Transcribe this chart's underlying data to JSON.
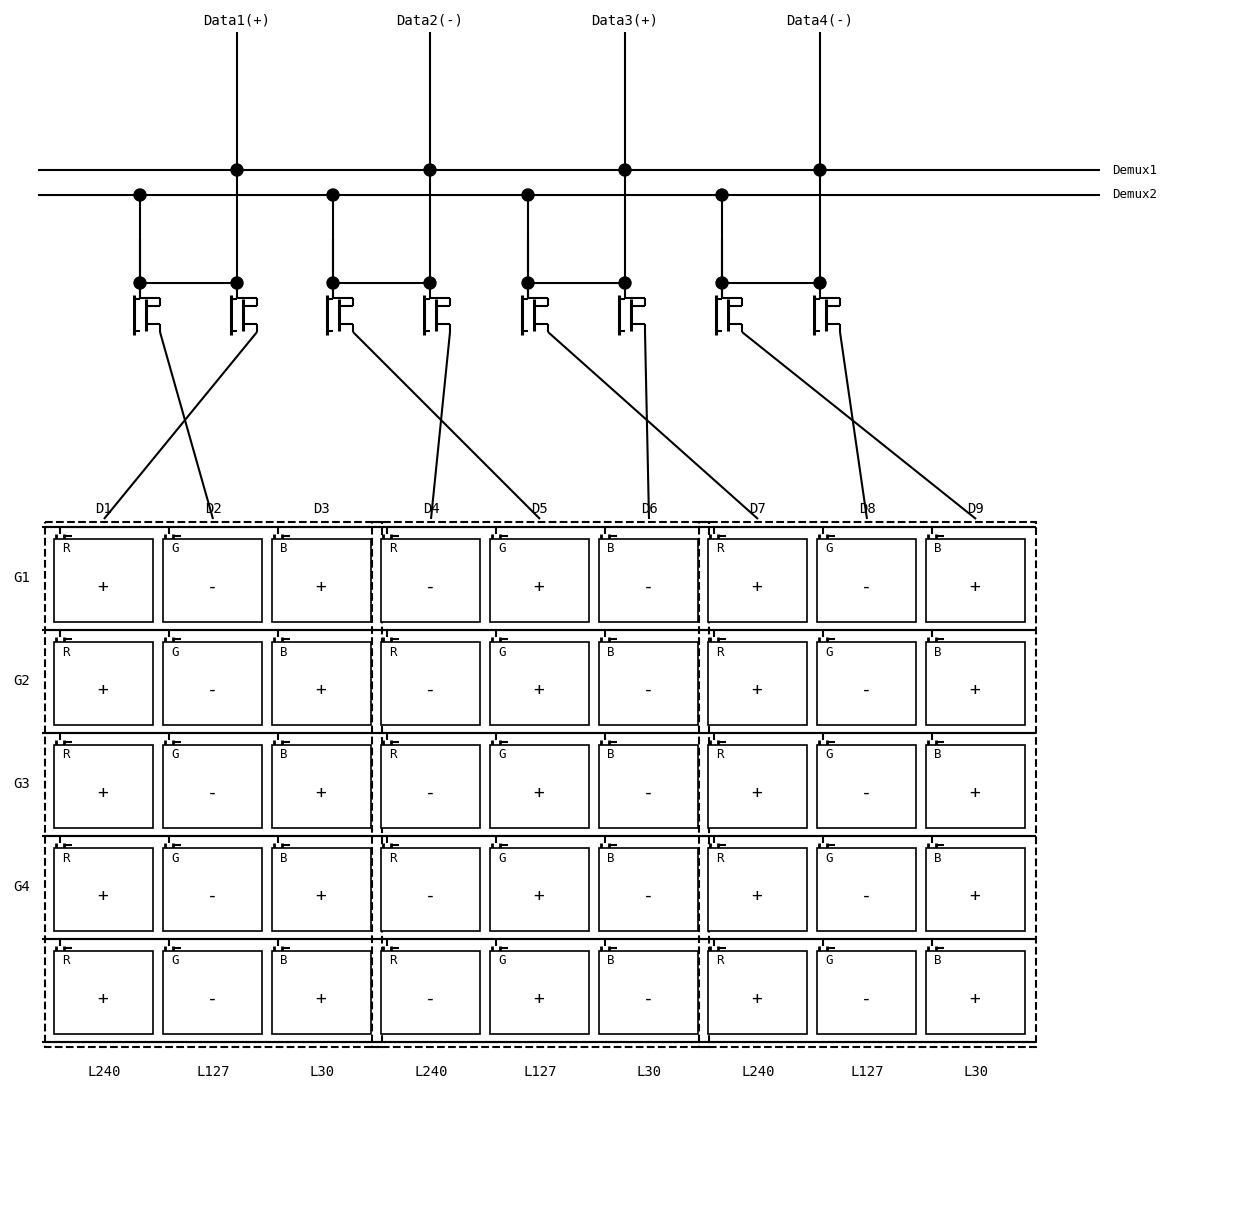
{
  "fig_width": 12.4,
  "fig_height": 12.05,
  "data_labels": [
    "Data1(+)",
    "Data2(-)",
    "Data3(+)",
    "Data4(-)"
  ],
  "demux_labels": [
    "Demux1",
    "Demux2"
  ],
  "col_labels": [
    "D1",
    "D2",
    "D3",
    "D4",
    "D5",
    "D6",
    "D7",
    "D8",
    "D9"
  ],
  "row_labels": [
    "G1",
    "G2",
    "G3",
    "G4"
  ],
  "pixel_types": [
    "R",
    "G",
    "B",
    "R",
    "G",
    "B",
    "R",
    "G",
    "B"
  ],
  "pixel_polarity": [
    "+",
    "-",
    "+",
    "-",
    "+",
    "-",
    "+",
    "-",
    "+"
  ],
  "bottom_labels": [
    "L240",
    "L127",
    "L30",
    "L240",
    "L127",
    "L30",
    "L240",
    "L127",
    "L30"
  ]
}
